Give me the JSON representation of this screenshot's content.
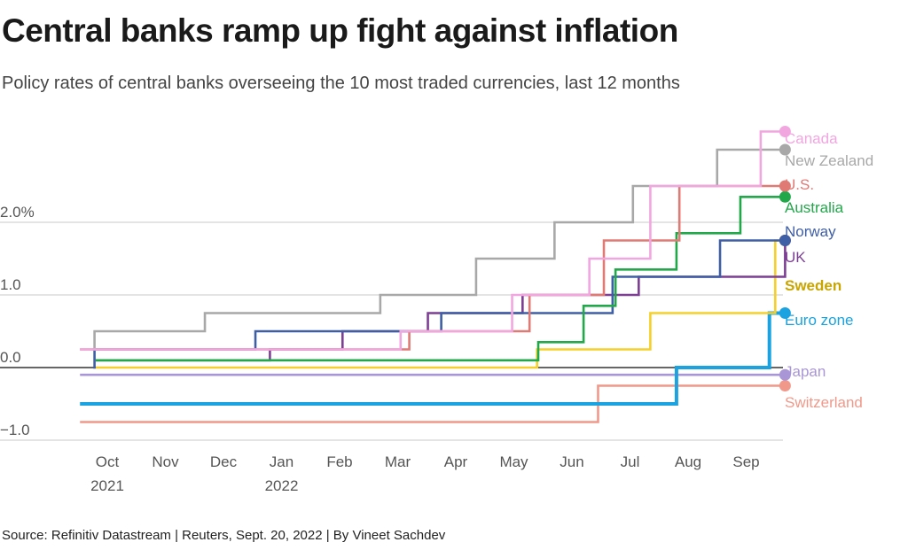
{
  "title": "Central banks ramp up fight against inflation",
  "subtitle": "Policy rates of central banks overseeing the 10 most traded currencies, last 12 months",
  "source": "Source: Refinitiv Datastream | Reuters, Sept. 20, 2022 | By Vineet Sachdev",
  "chart_data": {
    "type": "line",
    "line_shape": "step",
    "x_ticks": [
      {
        "line1": "Oct",
        "line2": "2021",
        "month": 0
      },
      {
        "line1": "Nov",
        "line2": "",
        "month": 1
      },
      {
        "line1": "Dec",
        "line2": "",
        "month": 2
      },
      {
        "line1": "Jan",
        "line2": "2022",
        "month": 3
      },
      {
        "line1": "Feb",
        "line2": "",
        "month": 4
      },
      {
        "line1": "Mar",
        "line2": "",
        "month": 5
      },
      {
        "line1": "Apr",
        "line2": "",
        "month": 6
      },
      {
        "line1": "May",
        "line2": "",
        "month": 7
      },
      {
        "line1": "Jun",
        "line2": "",
        "month": 8
      },
      {
        "line1": "Jul",
        "line2": "",
        "month": 9
      },
      {
        "line1": "Aug",
        "line2": "",
        "month": 10
      },
      {
        "line1": "Sep",
        "line2": "",
        "month": 11
      }
    ],
    "y_ticks": [
      {
        "value": 2.0,
        "label": "2.0%"
      },
      {
        "value": 1.0,
        "label": "1.0"
      },
      {
        "value": 0.0,
        "label": "0.0"
      },
      {
        "value": -1.0,
        "label": "−1.0"
      }
    ],
    "x_domain": [
      -0.47,
      11.67
    ],
    "ylim": [
      -1.0,
      3.25
    ],
    "grid": true,
    "series": [
      {
        "name": "Switzerland",
        "color": "#f0998a",
        "bold": false,
        "steps": [
          [
            -0.47,
            -0.75
          ],
          [
            8.45,
            -0.25
          ],
          [
            11.67,
            -0.25
          ]
        ]
      },
      {
        "name": "Japan",
        "color": "#a996d6",
        "bold": false,
        "steps": [
          [
            -0.47,
            -0.1
          ],
          [
            11.67,
            -0.1
          ]
        ]
      },
      {
        "name": "Euro zone",
        "color": "#1aa3e0",
        "bold": false,
        "steps": [
          [
            -0.47,
            -0.5
          ],
          [
            9.8,
            0.0
          ],
          [
            11.4,
            0.75
          ],
          [
            11.67,
            0.75
          ]
        ]
      },
      {
        "name": "Sweden",
        "color": "#f5d02a",
        "bold": true,
        "steps": [
          [
            -0.2,
            0.0
          ],
          [
            7.4,
            0.25
          ],
          [
            9.35,
            0.75
          ],
          [
            11.5,
            1.75
          ],
          [
            11.67,
            1.75
          ]
        ]
      },
      {
        "name": "UK",
        "color": "#7d3f94",
        "bold": false,
        "steps": [
          [
            -0.2,
            0.1
          ],
          [
            2.8,
            0.25
          ],
          [
            4.05,
            0.5
          ],
          [
            5.52,
            0.75
          ],
          [
            7.15,
            1.0
          ],
          [
            9.15,
            1.25
          ],
          [
            11.67,
            1.75
          ]
        ]
      },
      {
        "name": "Norway",
        "color": "#3e5ea6",
        "bold": false,
        "steps": [
          [
            -0.2,
            0.0
          ],
          [
            -0.22,
            0.25
          ],
          [
            2.55,
            0.5
          ],
          [
            5.75,
            0.75
          ],
          [
            8.7,
            1.25
          ],
          [
            10.55,
            1.75
          ],
          [
            11.67,
            1.75
          ]
        ]
      },
      {
        "name": "Australia",
        "color": "#22a84a",
        "bold": false,
        "steps": [
          [
            -0.2,
            0.1
          ],
          [
            7.42,
            0.35
          ],
          [
            8.2,
            0.85
          ],
          [
            8.75,
            1.35
          ],
          [
            9.8,
            1.85
          ],
          [
            10.9,
            2.35
          ],
          [
            11.67,
            2.35
          ]
        ]
      },
      {
        "name": "U.S.",
        "color": "#e07a74",
        "bold": false,
        "steps": [
          [
            -0.47,
            0.25
          ],
          [
            5.2,
            0.5
          ],
          [
            7.27,
            1.0
          ],
          [
            8.55,
            1.75
          ],
          [
            9.85,
            2.5
          ],
          [
            11.67,
            2.5
          ]
        ]
      },
      {
        "name": "New Zealand",
        "color": "#a8a8a8",
        "bold": false,
        "steps": [
          [
            -0.25,
            0.25
          ],
          [
            -0.22,
            0.5
          ],
          [
            1.68,
            0.75
          ],
          [
            4.7,
            1.0
          ],
          [
            6.35,
            1.5
          ],
          [
            7.7,
            2.0
          ],
          [
            9.05,
            2.5
          ],
          [
            10.5,
            3.0
          ],
          [
            11.67,
            3.0
          ]
        ]
      },
      {
        "name": "Canada",
        "color": "#f2a6e0",
        "bold": false,
        "steps": [
          [
            -0.47,
            0.25
          ],
          [
            5.05,
            0.5
          ],
          [
            6.97,
            1.0
          ],
          [
            8.3,
            1.5
          ],
          [
            9.35,
            2.5
          ],
          [
            11.25,
            3.25
          ],
          [
            11.67,
            3.25
          ]
        ]
      }
    ]
  }
}
